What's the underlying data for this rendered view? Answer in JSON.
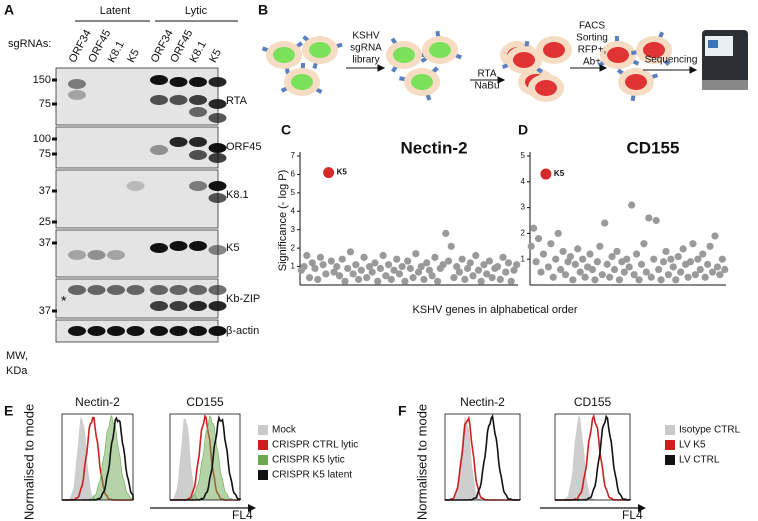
{
  "panel_letters": [
    "A",
    "B",
    "C",
    "D",
    "E",
    "F"
  ],
  "panel_a": {
    "groups": [
      "Latent",
      "Lytic"
    ],
    "sgrna_label": "sgRNAs:",
    "lanes": [
      "ORF34",
      "ORF45",
      "K8.1",
      "K5",
      "ORF34",
      "ORF45",
      "K8.1",
      "K5"
    ],
    "mw_markers": [
      150,
      75,
      100,
      75,
      37,
      25,
      37,
      37
    ],
    "mw_unit": [
      "MW,",
      "KDa"
    ],
    "asterisk": "*",
    "blots": [
      "RTA",
      "ORF45",
      "K8.1",
      "K5",
      "Kb-ZIP",
      "β-actin"
    ]
  },
  "panel_b": {
    "step_1": [
      "KSHV",
      "sgRNA",
      "library"
    ],
    "step_2": [
      "RTA",
      "NaBu"
    ],
    "step_3": [
      "FACS",
      "Sorting",
      "RFP+,",
      "Ab+"
    ],
    "step_4": "Sequencing"
  },
  "chart_data": [
    {
      "type": "scatter",
      "title": "Nectin-2",
      "ylabel": "Significance (- log P)",
      "xlabel": "KSHV genes in alphabetical order",
      "ylim": [
        0,
        7
      ],
      "yticks": [
        1,
        2,
        3,
        4,
        5,
        6,
        7
      ],
      "color": "#9a9a9a",
      "highlight_color": "#d42a2a",
      "categories": [
        null,
        null,
        null,
        null,
        null,
        null,
        null,
        null,
        null,
        null,
        "K5",
        null,
        null,
        null,
        null,
        null,
        null,
        null,
        null,
        null,
        null,
        null,
        null,
        null,
        null,
        null,
        null,
        null,
        null,
        null,
        null,
        null,
        null,
        null,
        null,
        null,
        null,
        null,
        null,
        null,
        null,
        null,
        null,
        null,
        null,
        null,
        null,
        null,
        null,
        null,
        null,
        null,
        null,
        null,
        null,
        null,
        null,
        null,
        null,
        null,
        null,
        null,
        null,
        null,
        null,
        null,
        null,
        null,
        null,
        null,
        null,
        null,
        null,
        null,
        null,
        null,
        null,
        null,
        null,
        null
      ],
      "values": [
        0.8,
        1.0,
        1.6,
        0.4,
        1.2,
        0.9,
        0.3,
        1.5,
        1.1,
        0.6,
        6.1,
        1.3,
        0.7,
        1.0,
        0.5,
        1.4,
        0.2,
        0.9,
        1.8,
        0.6,
        1.1,
        0.3,
        0.8,
        1.5,
        0.4,
        1.0,
        0.7,
        1.2,
        0.2,
        0.9,
        1.6,
        0.5,
        1.1,
        0.3,
        0.8,
        1.4,
        0.6,
        1.0,
        0.2,
        1.3,
        0.9,
        0.4,
        1.7,
        0.7,
        1.0,
        0.3,
        1.2,
        0.8,
        0.5,
        1.5,
        0.2,
        0.9,
        1.1,
        2.8,
        1.3,
        2.1,
        0.4,
        1.0,
        0.7,
        1.4,
        0.3,
        0.9,
        1.2,
        0.5,
        1.6,
        0.8,
        0.2,
        1.1,
        0.6,
        1.3,
        0.4,
        0.9,
        1.0,
        0.3,
        1.5,
        0.7,
        1.2,
        0.2,
        0.8,
        1.1
      ]
    },
    {
      "type": "scatter",
      "title": "CD155",
      "ylim": [
        0,
        5
      ],
      "yticks": [
        1,
        2,
        3,
        4,
        5
      ],
      "color": "#9a9a9a",
      "highlight_color": "#d42a2a",
      "categories": [
        null,
        null,
        null,
        null,
        null,
        null,
        "K5",
        null,
        null,
        null,
        null,
        null,
        null,
        null,
        null,
        null,
        null,
        null,
        null,
        null,
        null,
        null,
        null,
        null,
        null,
        null,
        null,
        null,
        null,
        null,
        null,
        null,
        null,
        null,
        null,
        null,
        null,
        null,
        null,
        null,
        null,
        null,
        null,
        null,
        null,
        null,
        null,
        null,
        null,
        null,
        null,
        null,
        null,
        null,
        null,
        null,
        null,
        null,
        null,
        null,
        null,
        null,
        null,
        null,
        null,
        null,
        null,
        null,
        null,
        null,
        null,
        null,
        null,
        null,
        null,
        null,
        null,
        null,
        null,
        null
      ],
      "values": [
        1.5,
        2.2,
        0.9,
        1.8,
        0.5,
        1.2,
        4.3,
        0.7,
        1.6,
        0.3,
        1.0,
        2.0,
        0.6,
        1.3,
        0.4,
        0.9,
        1.1,
        0.2,
        0.8,
        1.4,
        0.5,
        1.0,
        0.3,
        0.7,
        1.2,
        0.6,
        0.2,
        0.9,
        1.5,
        0.4,
        2.4,
        0.8,
        0.3,
        1.1,
        0.6,
        1.3,
        0.2,
        0.9,
        0.5,
        1.0,
        0.7,
        3.1,
        0.4,
        1.2,
        0.2,
        0.8,
        1.6,
        0.5,
        2.6,
        0.3,
        1.0,
        2.5,
        0.6,
        0.2,
        0.9,
        1.3,
        0.4,
        1.0,
        0.7,
        0.2,
        1.1,
        0.5,
        1.4,
        0.8,
        0.3,
        0.9,
        1.6,
        0.4,
        1.0,
        0.6,
        1.2,
        0.3,
        0.8,
        1.5,
        0.5,
        1.9,
        0.7,
        0.4,
        1.0,
        0.6
      ]
    }
  ],
  "panel_e": {
    "ylabel": "Normalised to mode",
    "titles": [
      "Nectin-2",
      "CD155"
    ],
    "xlabel": "FL4",
    "legend": [
      {
        "label": "Mock",
        "color": "#c9c9c9"
      },
      {
        "label": "CRISPR CTRL lytic",
        "color": "#cc2020"
      },
      {
        "label": "CRISPR K5 lytic",
        "color": "#6aa84f"
      },
      {
        "label": "CRISPR K5 latent",
        "color": "#111111"
      }
    ]
  },
  "panel_f": {
    "ylabel": "Normalised to mode",
    "titles": [
      "Nectin-2",
      "CD155"
    ],
    "xlabel": "FL4",
    "legend": [
      {
        "label": "Isotype CTRL",
        "color": "#c9c9c9"
      },
      {
        "label": "LV K5",
        "color": "#cc2020"
      },
      {
        "label": "LV CTRL",
        "color": "#111111"
      }
    ]
  }
}
